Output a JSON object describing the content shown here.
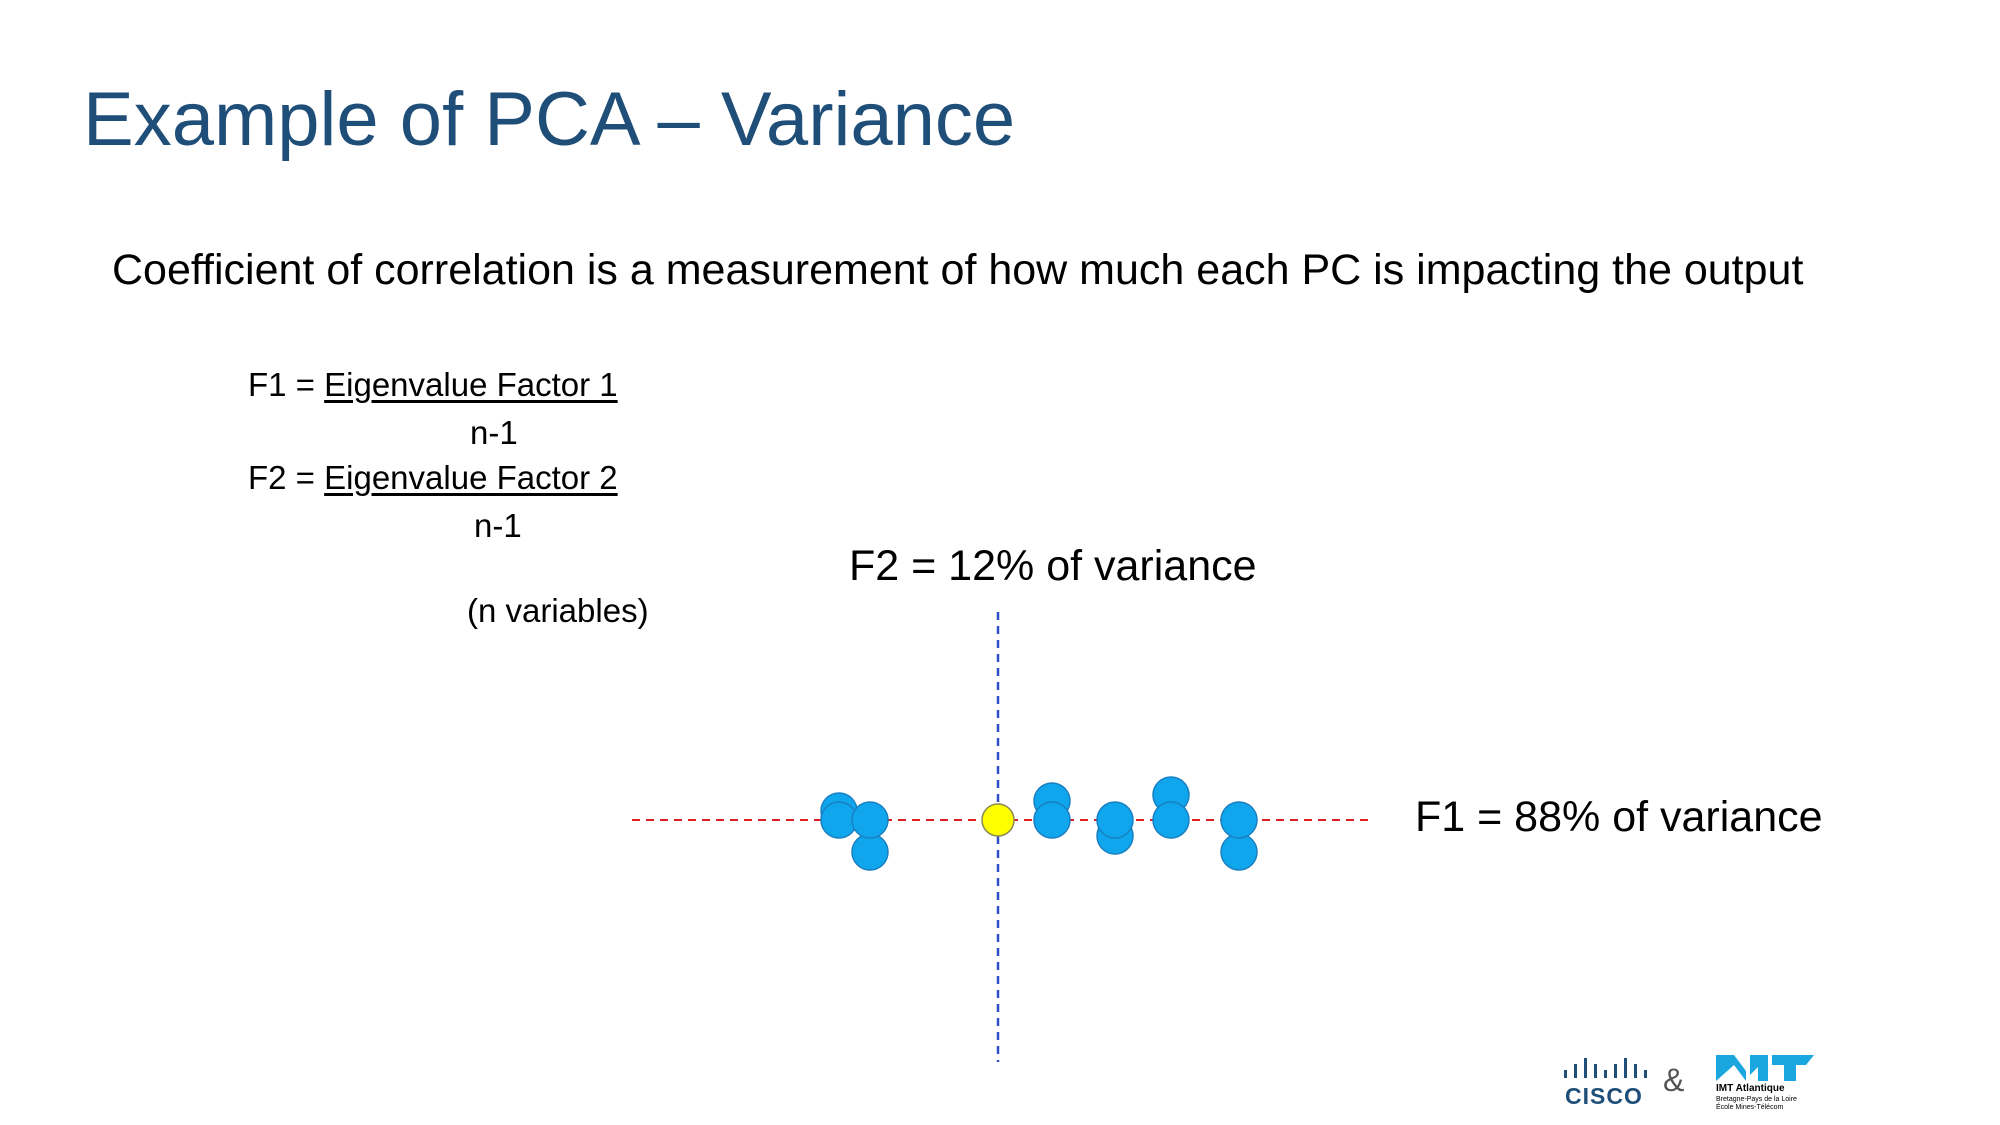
{
  "slide": {
    "title": "Example of PCA – Variance",
    "subtitle": "Coefficient of correlation is a measurement of how much each PC is impacting the output",
    "formula1": {
      "lhs": "F1 = ",
      "numerator": "Eigenvalue Factor 1",
      "denominator": "n-1"
    },
    "formula2": {
      "lhs": "F2 = ",
      "numerator": "Eigenvalue Factor 2",
      "denominator": "n-1"
    },
    "note": "(n variables)",
    "f2_label": "F2 = 12% of variance",
    "f1_label": "F1 = 88% of variance",
    "logos": {
      "cisco": "CISCO",
      "ampersand": "&",
      "imt_name": "IMT Atlantique",
      "imt_line1": "Bretagne-Pays de la Loire",
      "imt_line2": "École Mines-Télécom"
    }
  },
  "colors": {
    "title": "#1F4E79",
    "horizontal_axis": "#E02020",
    "vertical_axis": "#2E4FC9",
    "points": "#10A6EE",
    "center_point": "#FFFF00"
  }
}
